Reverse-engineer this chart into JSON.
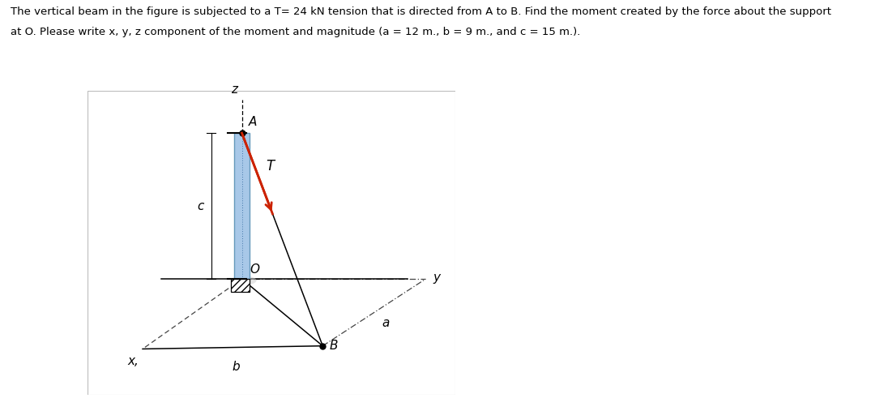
{
  "title_line1": "The vertical beam in the figure is subjected to a T= 24 kN tension that is directed from A to B. Find the moment created by the force about the support",
  "title_line2": "at O. Please write x, y, z component of the moment and magnitude (a = 12 m., b = 9 m., and c = 15 m.).",
  "title_fontsize": 9.5,
  "fig_width": 10.8,
  "fig_height": 5.07,
  "bg_color": "#ffffff",
  "beam_color_light": "#a8c8e8",
  "beam_color_dark": "#6699bb",
  "force_color": "#cc2200",
  "line_color": "#000000",
  "orange_color": "#cc5500",
  "label_A": "A",
  "label_B": "B",
  "label_O": "O",
  "label_T": "T",
  "label_x": "x,",
  "label_y": "y",
  "label_z": "z",
  "label_a": "a",
  "label_b": "b",
  "label_c": "c"
}
